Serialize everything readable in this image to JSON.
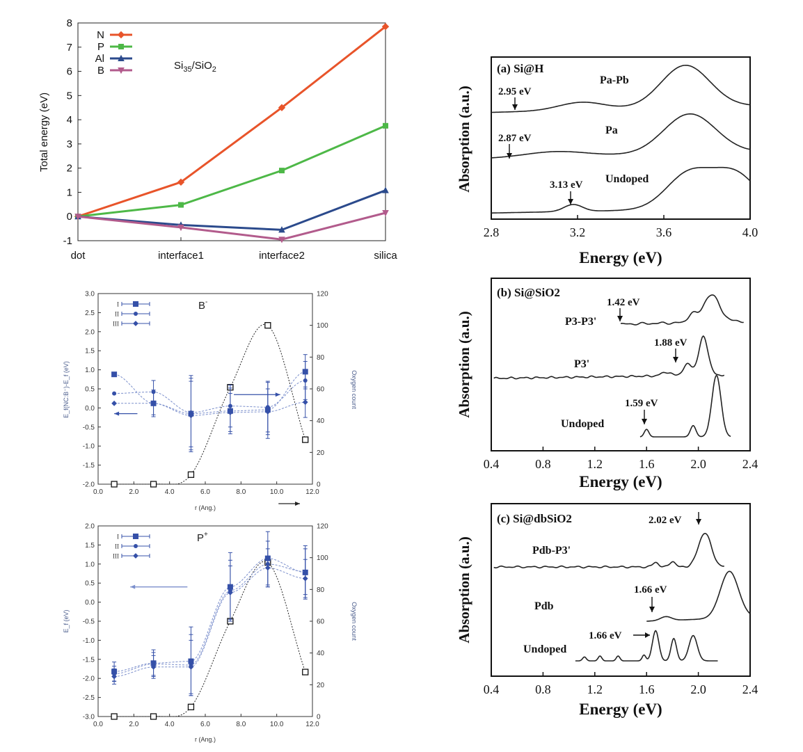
{
  "chart_data": [
    {
      "id": "top-left",
      "type": "line",
      "title": "Si35/SiO2",
      "title_main": "Si",
      "title_sub1": "35",
      "title_mid": "/SiO",
      "title_sub2": "2",
      "ylabel": "Total energy (eV)",
      "xlabel": "",
      "categories": [
        "dot",
        "interface1",
        "interface2",
        "silica"
      ],
      "ylim": [
        -1,
        8
      ],
      "yticks": [
        "-1",
        "0",
        "1",
        "2",
        "3",
        "4",
        "5",
        "6",
        "7",
        "8"
      ],
      "legend_position": "top-left",
      "series": [
        {
          "name": "N",
          "color": "#e8542a",
          "marker": "diamond",
          "values": [
            0,
            1.42,
            4.5,
            7.85
          ]
        },
        {
          "name": "P",
          "color": "#4db847",
          "marker": "square",
          "values": [
            0,
            0.48,
            1.9,
            3.75
          ]
        },
        {
          "name": "Al",
          "color": "#2b4a8c",
          "marker": "triangle-up",
          "values": [
            0,
            -0.35,
            -0.55,
            1.08
          ]
        },
        {
          "name": "B",
          "color": "#b25b8c",
          "marker": "triangle-down",
          "values": [
            0,
            -0.45,
            -0.95,
            0.15
          ]
        }
      ]
    },
    {
      "id": "mid-left",
      "type": "scatter",
      "title": "B⁻",
      "title_main": "B",
      "title_sup": "-",
      "ylabel": "E_f(NC:B⁻)-E_f (eV)",
      "ylabel2": "Oxygen count",
      "xlabel": "r (Ang.)",
      "xlim": [
        0,
        12
      ],
      "ylim": [
        -2,
        3
      ],
      "y2lim": [
        0,
        120
      ],
      "xticks": [
        "0.0",
        "2.0",
        "4.0",
        "6.0",
        "8.0",
        "10.0",
        "12.0"
      ],
      "yticks": [
        "-2.0",
        "-1.5",
        "-1.0",
        "-0.5",
        "0.0",
        "0.5",
        "1.0",
        "1.5",
        "2.0",
        "2.5",
        "3.0"
      ],
      "y2ticks": [
        "0",
        "20",
        "40",
        "60",
        "80",
        "100",
        "120"
      ],
      "legend": [
        "I",
        "II",
        "III"
      ],
      "series": [
        {
          "name": "I",
          "marker": "square",
          "x": [
            0.9,
            3.1,
            5.2,
            7.4,
            9.5,
            11.6
          ],
          "y": [
            0.88,
            0.12,
            -0.15,
            -0.08,
            -0.05,
            0.95
          ],
          "err": [
            0,
            0.35,
            1.0,
            0.6,
            0.75,
            0.45
          ]
        },
        {
          "name": "II",
          "marker": "circle",
          "x": [
            0.9,
            3.1,
            5.2,
            7.4,
            9.5,
            11.6
          ],
          "y": [
            0.38,
            0.42,
            -0.12,
            0.05,
            0.02,
            0.72
          ],
          "err": [
            0,
            0.3,
            0.9,
            0.55,
            0.65,
            0.5
          ]
        },
        {
          "name": "III",
          "marker": "diamond",
          "x": [
            0.9,
            3.1,
            5.2,
            7.4,
            9.5,
            11.6
          ],
          "y": [
            0.12,
            0.12,
            -0.2,
            -0.12,
            -0.1,
            0.15
          ],
          "err": [
            0,
            0.3,
            0.9,
            0.5,
            0.6,
            0.4
          ]
        }
      ],
      "oxygen": {
        "x": [
          0.9,
          3.1,
          5.2,
          7.4,
          9.5,
          11.6
        ],
        "y": [
          0,
          0,
          6,
          61,
          100,
          28
        ]
      },
      "arrows": [
        {
          "direction": "left",
          "x_from": 2.2,
          "x_to": 0.9,
          "y": -0.15
        },
        {
          "direction": "right",
          "x_from": 7.6,
          "x_to": 10.2,
          "y": 0.35
        },
        {
          "direction": "right",
          "x_from": 10.1,
          "x_to": 11.3,
          "y": -2.3
        }
      ]
    },
    {
      "id": "bottom-left",
      "type": "scatter",
      "title": "P⁺",
      "title_main": "P",
      "title_sup": "+",
      "ylabel": "E_f (eV)",
      "ylabel2": "Oxygen count",
      "xlabel": "r (Ang.)",
      "xlim": [
        0,
        12
      ],
      "ylim": [
        -3,
        2
      ],
      "y2lim": [
        0,
        120
      ],
      "xticks": [
        "0.0",
        "2.0",
        "4.0",
        "6.0",
        "8.0",
        "10.0",
        "12.0"
      ],
      "yticks": [
        "-3.0",
        "-2.5",
        "-2.0",
        "-1.5",
        "-1.0",
        "-0.5",
        "0.0",
        "0.5",
        "1.0",
        "1.5",
        "2.0"
      ],
      "y2ticks": [
        "0",
        "20",
        "40",
        "60",
        "80",
        "100",
        "120"
      ],
      "legend": [
        "I",
        "II",
        "III"
      ],
      "series": [
        {
          "name": "I",
          "marker": "square",
          "x": [
            0.9,
            3.1,
            5.2,
            7.4,
            9.5,
            11.6
          ],
          "y": [
            -1.82,
            -1.6,
            -1.55,
            0.4,
            1.15,
            0.78
          ],
          "err": [
            0.25,
            0.35,
            0.9,
            0.9,
            0.7,
            0.7
          ]
        },
        {
          "name": "II",
          "marker": "circle",
          "x": [
            0.9,
            3.1,
            5.2,
            7.4,
            9.5,
            11.6
          ],
          "y": [
            -1.88,
            -1.62,
            -1.65,
            0.3,
            1.0,
            0.8
          ],
          "err": [
            0.2,
            0.3,
            0.8,
            0.8,
            0.6,
            0.6
          ]
        },
        {
          "name": "III",
          "marker": "diamond",
          "x": [
            0.9,
            3.1,
            5.2,
            7.4,
            9.5,
            11.6
          ],
          "y": [
            -1.95,
            -1.7,
            -1.7,
            0.25,
            0.9,
            0.62
          ],
          "err": [
            0.2,
            0.3,
            0.7,
            0.7,
            0.5,
            0.5
          ]
        }
      ],
      "oxygen": {
        "x": [
          0.9,
          3.1,
          5.2,
          7.4,
          9.5,
          11.6
        ],
        "y": [
          0,
          0,
          6,
          60,
          97,
          28
        ]
      },
      "arrows": [
        {
          "direction": "left",
          "x_from": 5.0,
          "x_to": 1.8,
          "y": 0.4
        }
      ]
    },
    {
      "id": "right-a",
      "type": "line",
      "title": "(a) Si@H",
      "xlabel": "Energy (eV)",
      "ylabel": "Absorption (a.u.)",
      "xlim": [
        2.8,
        4.0
      ],
      "xticks": [
        "2.8",
        "3.2",
        "3.6",
        "4.0"
      ],
      "curves": [
        {
          "name": "Pa-Pb",
          "label": "Pa-Pb",
          "offset": 2.1
        },
        {
          "name": "Pa",
          "label": "Pa",
          "offset": 1.1
        },
        {
          "name": "Undoped",
          "label": "Undoped",
          "offset": 0.0
        }
      ],
      "annotations": [
        {
          "text": "2.95 eV",
          "x": 2.95,
          "curve": "Pa-Pb"
        },
        {
          "text": "2.87 eV",
          "x": 2.87,
          "curve": "Pa"
        },
        {
          "text": "3.13 eV",
          "x": 3.13,
          "curve": "Undoped"
        }
      ]
    },
    {
      "id": "right-b",
      "type": "line",
      "title": "(b) Si@SiO2",
      "xlabel": "Energy (eV)",
      "ylabel": "Absorption (a.u.)",
      "xlim": [
        0.4,
        2.4
      ],
      "xticks": [
        "0.4",
        "0.8",
        "1.2",
        "1.6",
        "2.0",
        "2.4"
      ],
      "curves": [
        {
          "name": "P3-P3'",
          "label": "P3-P3'",
          "offset": 2.1
        },
        {
          "name": "P3'",
          "label": "P3'",
          "offset": 1.1
        },
        {
          "name": "Undoped",
          "label": "Undoped",
          "offset": 0.0
        }
      ],
      "annotations": [
        {
          "text": "1.42 eV",
          "x": 1.42,
          "curve": "P3-P3'"
        },
        {
          "text": "1.88 eV",
          "x": 1.88,
          "curve": "P3'"
        },
        {
          "text": "1.59 eV",
          "x": 1.59,
          "curve": "Undoped"
        }
      ]
    },
    {
      "id": "right-c",
      "type": "line",
      "title": "(c) Si@dbSiO2",
      "xlabel": "Energy (eV)",
      "ylabel": "Absorption (a.u.)",
      "xlim": [
        0.4,
        2.4
      ],
      "xticks": [
        "0.4",
        "0.8",
        "1.2",
        "1.6",
        "2.0",
        "2.4"
      ],
      "curves": [
        {
          "name": "Pdb-P3'",
          "label": "Pdb-P3'",
          "offset": 2.1
        },
        {
          "name": "Pdb",
          "label": "Pdb",
          "offset": 1.1
        },
        {
          "name": "Undoped",
          "label": "Undoped",
          "offset": 0.0
        }
      ],
      "annotations": [
        {
          "text": "2.02 eV",
          "x": 2.02,
          "curve": "Pdb-P3'"
        },
        {
          "text": "1.66 eV",
          "x": 1.66,
          "curve": "Pdb"
        },
        {
          "text": "1.66 eV",
          "x": 1.66,
          "curve": "Undoped"
        }
      ]
    }
  ]
}
